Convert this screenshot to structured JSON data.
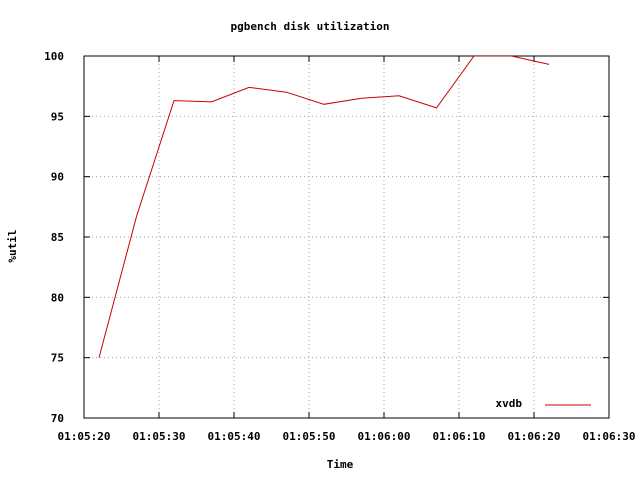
{
  "chart_data": {
    "type": "line",
    "title": "pgbench disk utilization",
    "xlabel": "Time",
    "ylabel": "%util",
    "x_ticks": [
      "01:05:20",
      "01:05:30",
      "01:05:40",
      "01:05:50",
      "01:06:00",
      "01:06:10",
      "01:06:20",
      "01:06:30"
    ],
    "y_ticks": [
      "70",
      "75",
      "80",
      "85",
      "90",
      "95",
      "100"
    ],
    "xlim": [
      "01:05:20",
      "01:06:30"
    ],
    "ylim": [
      70,
      100
    ],
    "grid": true,
    "legend_position": "bottom-right",
    "series": [
      {
        "name": "xvdb",
        "color": "#cc0000",
        "x": [
          "01:05:22",
          "01:05:27",
          "01:05:32",
          "01:05:37",
          "01:05:42",
          "01:05:47",
          "01:05:52",
          "01:05:57",
          "01:06:02",
          "01:06:07",
          "01:06:12",
          "01:06:17",
          "01:06:22"
        ],
        "y": [
          75.0,
          86.7,
          96.3,
          96.2,
          97.4,
          97.0,
          96.0,
          96.5,
          96.7,
          95.7,
          100.0,
          100.0,
          99.3
        ]
      }
    ]
  }
}
